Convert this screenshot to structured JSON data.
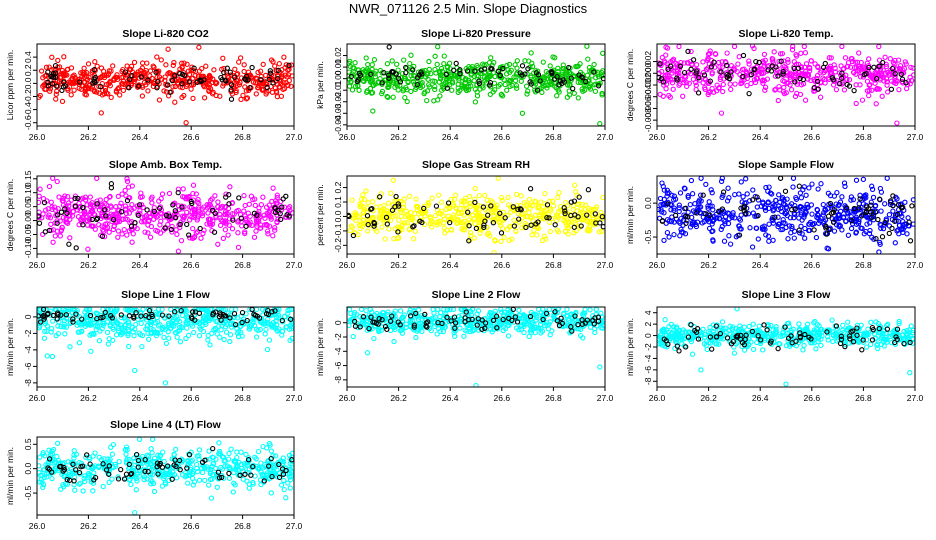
{
  "figure_title": "NWR_071126  2.5 Min. Slope Diagnostics",
  "chart_data": [
    {
      "type": "scatter",
      "title": "Slope Li-820 CO2",
      "ylabel": "Licor ppm per min.",
      "xlim": [
        26.0,
        27.0
      ],
      "ylim": [
        -0.65,
        0.6
      ],
      "xticks": [
        26.0,
        26.2,
        26.4,
        26.6,
        26.8,
        27.0
      ],
      "yticks": [
        -0.6,
        -0.4,
        -0.2,
        0.0,
        0.2,
        0.4
      ],
      "ytick_labels": [
        "-0.6",
        "-0.4",
        "-0.2",
        "0.0",
        "0.2",
        "0.4"
      ],
      "series": [
        {
          "color": "#ff0000",
          "count": 520,
          "center": 0.05,
          "spread": 0.13,
          "outliers": [
            [
              26.63,
              0.55
            ],
            [
              26.51,
              0.52
            ],
            [
              26.58,
              -0.6
            ],
            [
              26.25,
              -0.45
            ]
          ]
        },
        {
          "color": "#000000",
          "count": 75,
          "center": 0.05,
          "spread": 0.1,
          "outliers": []
        }
      ]
    },
    {
      "type": "scatter",
      "title": "Slope Li-820 Pressure",
      "ylabel": "kPa per min.",
      "xlim": [
        26.0,
        27.0
      ],
      "ylim": [
        -0.041,
        0.03
      ],
      "xticks": [
        26.0,
        26.2,
        26.4,
        26.6,
        26.8,
        27.0
      ],
      "yticks": [
        -0.04,
        -0.03,
        -0.02,
        -0.01,
        0.0,
        0.01,
        0.02
      ],
      "ytick_labels": [
        "-0.04",
        "-0.03",
        "-0.02",
        "-0.01",
        "0.00",
        "0.01",
        "0.02"
      ],
      "series": [
        {
          "color": "#00c800",
          "count": 520,
          "center": 0.0,
          "spread": 0.0075,
          "outliers": [
            [
              26.93,
              0.028
            ],
            [
              26.98,
              -0.039
            ],
            [
              26.68,
              -0.03
            ],
            [
              26.1,
              -0.028
            ]
          ]
        },
        {
          "color": "#000000",
          "count": 75,
          "center": 0.002,
          "spread": 0.006,
          "outliers": []
        }
      ]
    },
    {
      "type": "scatter",
      "title": "Slope Li-820 Temp.",
      "ylabel": "degrees C per min.",
      "xlim": [
        26.0,
        27.0
      ],
      "ylim": [
        -0.009,
        0.005
      ],
      "xticks": [
        26.0,
        26.2,
        26.4,
        26.6,
        26.8,
        27.0
      ],
      "yticks": [
        -0.008,
        -0.006,
        -0.004,
        -0.002,
        0.0,
        0.002
      ],
      "ytick_labels": [
        "-0.008",
        "-0.006",
        "-0.004",
        "-0.002",
        "0.000",
        "0.002"
      ],
      "series": [
        {
          "color": "#ff00ff",
          "count": 520,
          "center": 0.0,
          "spread": 0.0018,
          "outliers": [
            [
              26.37,
              0.0047
            ],
            [
              26.93,
              -0.0085
            ],
            [
              26.25,
              -0.0068
            ]
          ]
        },
        {
          "color": "#000000",
          "count": 75,
          "center": 0.0,
          "spread": 0.0015,
          "outliers": []
        }
      ]
    },
    {
      "type": "scatter",
      "title": "Slope Amb. Box Temp.",
      "ylabel": "degrees C per min.",
      "xlim": [
        26.0,
        27.0
      ],
      "ylim": [
        -0.12,
        0.16
      ],
      "xticks": [
        26.0,
        26.2,
        26.4,
        26.6,
        26.8,
        27.0
      ],
      "yticks": [
        -0.1,
        -0.05,
        0.0,
        0.05,
        0.1,
        0.15
      ],
      "ytick_labels": [
        "-0.10",
        "-0.05",
        "0.00",
        "0.05",
        "0.10",
        "0.15"
      ],
      "series": [
        {
          "color": "#ff00ff",
          "count": 520,
          "center": 0.02,
          "spread": 0.045,
          "outliers": [
            [
              26.35,
              0.15
            ],
            [
              26.55,
              -0.11
            ]
          ]
        },
        {
          "color": "#000000",
          "count": 75,
          "center": 0.02,
          "spread": 0.04,
          "outliers": []
        }
      ]
    },
    {
      "type": "scatter",
      "title": "Slope Gas Stream RH",
      "ylabel": "percent per min.",
      "xlim": [
        26.0,
        27.0
      ],
      "ylim": [
        -0.26,
        0.28
      ],
      "xticks": [
        26.0,
        26.2,
        26.4,
        26.6,
        26.8,
        27.0
      ],
      "yticks": [
        -0.2,
        -0.1,
        0.0,
        0.1,
        0.2
      ],
      "ytick_labels": [
        "-0.2",
        "-0.1",
        "0.0",
        "0.1",
        "0.2"
      ],
      "series": [
        {
          "color": "#ffff00",
          "count": 520,
          "center": 0.0,
          "spread": 0.07,
          "outliers": [
            [
              26.57,
              -0.25
            ],
            [
              26.18,
              0.25
            ]
          ]
        },
        {
          "color": "#000000",
          "count": 75,
          "center": 0.0,
          "spread": 0.07,
          "outliers": []
        }
      ]
    },
    {
      "type": "scatter",
      "title": "Slope Sample Flow",
      "ylabel": "ml/min per min.",
      "xlim": [
        26.0,
        27.0
      ],
      "ylim": [
        -0.75,
        0.4
      ],
      "xticks": [
        26.0,
        26.2,
        26.4,
        26.6,
        26.8,
        27.0
      ],
      "yticks": [
        -0.5,
        0.0
      ],
      "ytick_labels": [
        "-0.5",
        "0.0"
      ],
      "series": [
        {
          "color": "#0000ff",
          "count": 520,
          "center": -0.15,
          "spread": 0.2,
          "outliers": [
            [
              26.8,
              0.35
            ],
            [
              26.86,
              -0.72
            ]
          ]
        },
        {
          "color": "#000000",
          "count": 75,
          "center": -0.15,
          "spread": 0.18,
          "outliers": []
        }
      ]
    },
    {
      "type": "scatter",
      "title": "Slope Line 1 Flow",
      "ylabel": "ml/min per min.",
      "xlim": [
        26.0,
        27.0
      ],
      "ylim": [
        -8.5,
        1.2
      ],
      "xticks": [
        26.0,
        26.2,
        26.4,
        26.6,
        26.8,
        27.0
      ],
      "yticks": [
        -8,
        -6,
        -4,
        -2,
        0
      ],
      "ytick_labels": [
        "-8",
        "-6",
        "-4",
        "-2",
        "0"
      ],
      "series": [
        {
          "color": "#00ffff",
          "count": 520,
          "center": -0.6,
          "spread": 1.2,
          "outliers": [
            [
              26.5,
              -8.0
            ],
            [
              26.38,
              -6.5
            ],
            [
              26.06,
              -4.8
            ]
          ]
        },
        {
          "color": "#000000",
          "count": 75,
          "center": 0.1,
          "spread": 0.4,
          "outliers": []
        }
      ]
    },
    {
      "type": "scatter",
      "title": "Slope Line 2 Flow",
      "ylabel": "ml/min per min.",
      "xlim": [
        26.0,
        27.0
      ],
      "ylim": [
        -9.0,
        2.2
      ],
      "xticks": [
        26.0,
        26.2,
        26.4,
        26.6,
        26.8,
        27.0
      ],
      "yticks": [
        -8,
        -6,
        -4,
        -2,
        0
      ],
      "ytick_labels": [
        "-8",
        "-6",
        "-4",
        "-2",
        "0"
      ],
      "series": [
        {
          "color": "#00ffff",
          "count": 520,
          "center": 0.2,
          "spread": 0.9,
          "outliers": [
            [
              26.5,
              -8.8
            ],
            [
              26.98,
              -6.2
            ],
            [
              26.08,
              -4.2
            ],
            [
              26.82,
              2.0
            ]
          ]
        },
        {
          "color": "#000000",
          "count": 75,
          "center": 0.2,
          "spread": 0.7,
          "outliers": []
        }
      ]
    },
    {
      "type": "scatter",
      "title": "Slope Line 3 Flow",
      "ylabel": "ml/min per min.",
      "xlim": [
        26.0,
        27.0
      ],
      "ylim": [
        -9.0,
        5.0
      ],
      "xticks": [
        26.0,
        26.2,
        26.4,
        26.6,
        26.8,
        27.0
      ],
      "yticks": [
        -8,
        -6,
        -4,
        -2,
        0,
        2,
        4
      ],
      "ytick_labels": [
        "-8",
        "-6",
        "-4",
        "-2",
        "0",
        "2",
        "4"
      ],
      "series": [
        {
          "color": "#00ffff",
          "count": 520,
          "center": 0.0,
          "spread": 1.0,
          "outliers": [
            [
              26.5,
              -8.5
            ],
            [
              26.17,
              -6.0
            ],
            [
              26.98,
              -6.5
            ],
            [
              26.31,
              4.7
            ]
          ]
        },
        {
          "color": "#000000",
          "count": 75,
          "center": -0.3,
          "spread": 0.9,
          "outliers": []
        }
      ]
    },
    {
      "type": "scatter",
      "title": "Slope Line 4 (LT) Flow",
      "ylabel": "ml/min per min.",
      "xlim": [
        26.0,
        27.0
      ],
      "ylim": [
        -0.95,
        0.65
      ],
      "xticks": [
        26.0,
        26.2,
        26.4,
        26.6,
        26.8,
        27.0
      ],
      "yticks": [
        -0.5,
        0.0,
        0.5
      ],
      "ytick_labels": [
        "-0.5",
        "0.0",
        "0.5"
      ],
      "series": [
        {
          "color": "#00ffff",
          "count": 520,
          "center": 0.0,
          "spread": 0.2,
          "outliers": [
            [
              26.38,
              -0.9
            ],
            [
              26.45,
              0.6
            ],
            [
              26.08,
              0.52
            ]
          ]
        },
        {
          "color": "#000000",
          "count": 75,
          "center": 0.0,
          "spread": 0.18,
          "outliers": []
        }
      ]
    }
  ]
}
